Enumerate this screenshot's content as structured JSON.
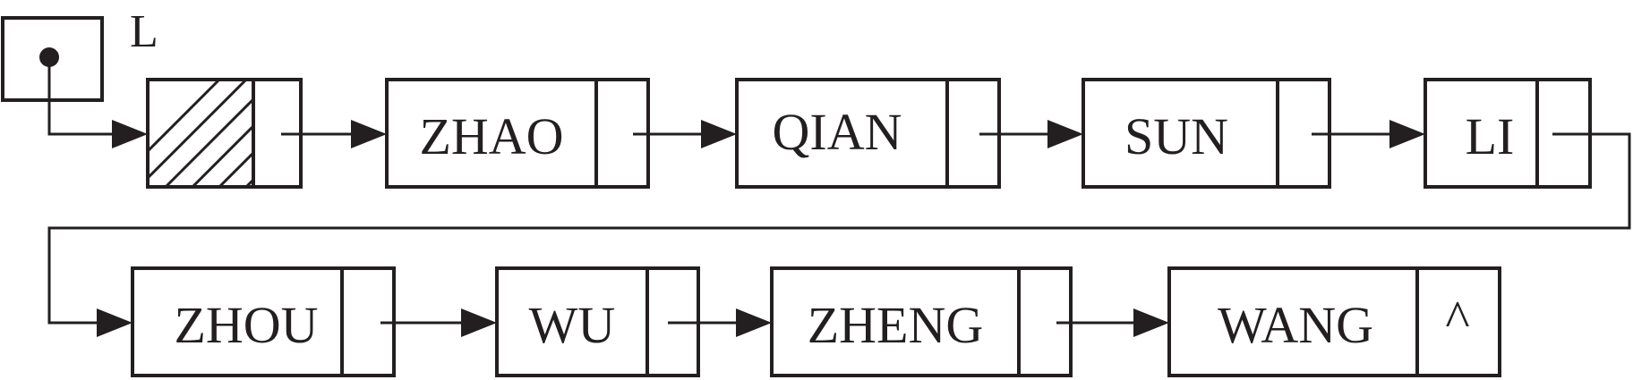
{
  "head_pointer": {
    "label": "L"
  },
  "nodes": [
    {
      "data": "ZHAO"
    },
    {
      "data": "QIAN"
    },
    {
      "data": "SUN"
    },
    {
      "data": "LI"
    },
    {
      "data": "ZHOU"
    },
    {
      "data": "WU"
    },
    {
      "data": "ZHENG"
    },
    {
      "data": "WANG",
      "next": "^"
    }
  ],
  "colors": {
    "stroke": "#231f20",
    "background": "#ffffff"
  }
}
